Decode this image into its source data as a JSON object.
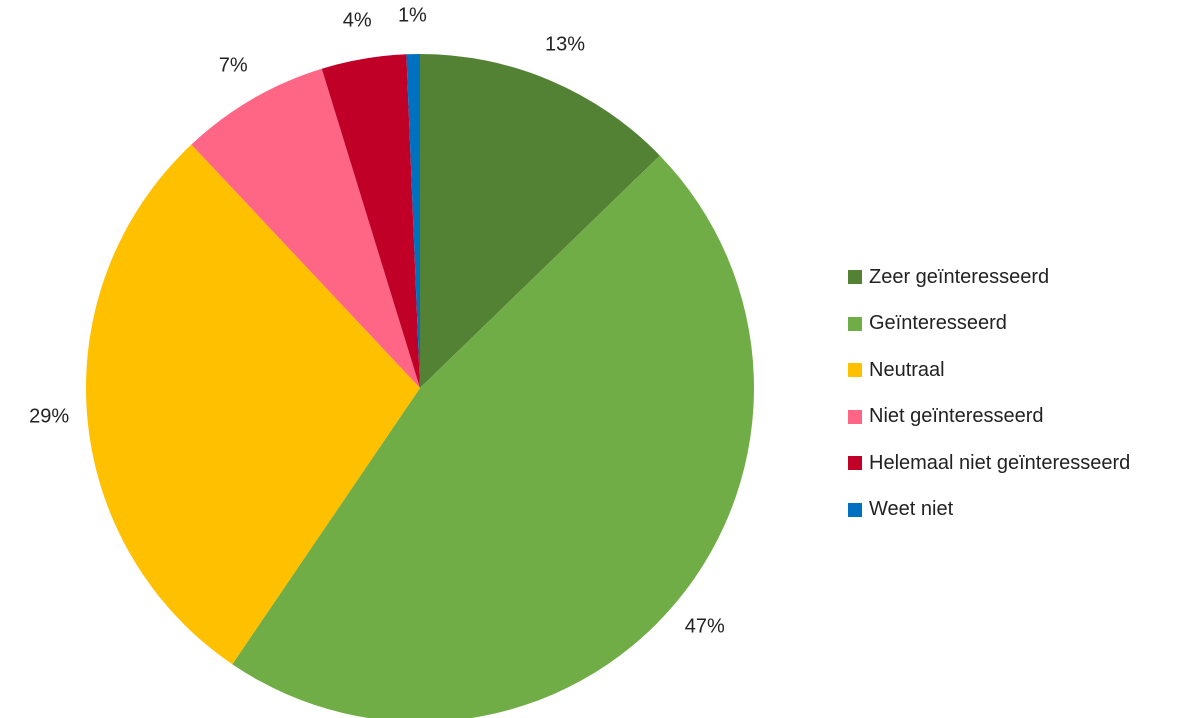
{
  "chart_data": {
    "type": "pie",
    "categories": [
      "Zeer geïnteresseerd",
      "Geïnteresseerd",
      "Neutraal",
      "Niet geïnteresseerd",
      "Helemaal niet geïnteresseerd",
      "Weet niet"
    ],
    "values": [
      12.75,
      46.75,
      28.5,
      7.25,
      4.1,
      0.65
    ],
    "data_labels": [
      "13%",
      "47%",
      "29%",
      "7%",
      "4%",
      "1%"
    ],
    "colors": [
      "#548235",
      "#70AD47",
      "#FFC000",
      "#FF6685",
      "#C00027",
      "#0070C0"
    ],
    "start_angle_deg": 0,
    "direction": "clockwise",
    "legend_position": "right"
  }
}
